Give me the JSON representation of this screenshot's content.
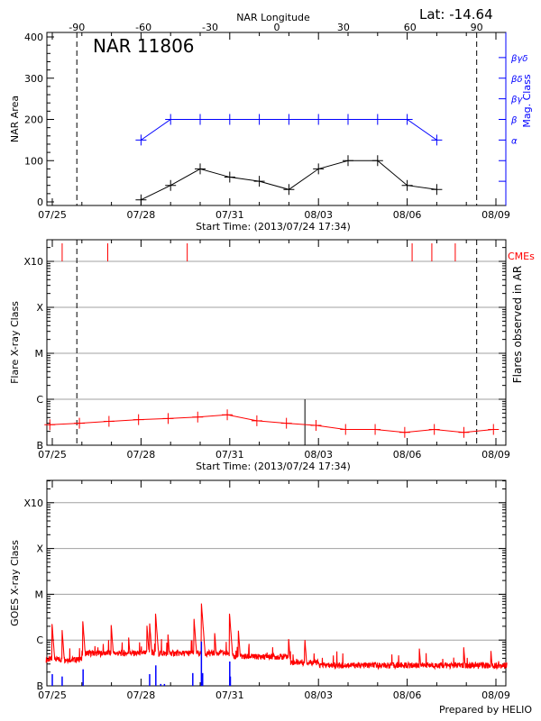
{
  "header": {
    "lat_label": "Lat: -14.64",
    "credit": "Prepared by HELIO"
  },
  "colors": {
    "area": "#000000",
    "mag_class": "#0000ff",
    "flares": "#ff0000",
    "cme": "#ff0000",
    "goes_long": "#ff0000",
    "goes_short": "#0000ff",
    "grid": "#a0a0a0"
  },
  "chart_data": [
    {
      "type": "line",
      "title": "NAR 11806",
      "xlabel": "Start Time: (2013/07/24 17:34)",
      "x_ticks": [
        "07/25",
        "07/28",
        "07/31",
        "08/03",
        "08/06",
        "08/09"
      ],
      "top_axis": {
        "label": "NAR Longitude",
        "ticks": [
          "-90",
          "-60",
          "-30",
          "0",
          "30",
          "60",
          "90"
        ]
      },
      "limb_longitudes": [
        -90,
        90
      ],
      "ylabel": "NAR Area",
      "ylim": [
        0,
        400
      ],
      "y_ticks": [
        "0",
        "100",
        "200",
        "300",
        "400"
      ],
      "y2label": "Mag. Class",
      "y2_ticks": [
        "α",
        "β",
        "βγ",
        "βδ",
        "βγδ"
      ],
      "series": [
        {
          "key": "area",
          "x": [
            "2013-07-28 00:00",
            "2013-07-29 00:00",
            "2013-07-30 00:00",
            "2013-07-31 00:00",
            "2013-08-01 00:00",
            "2013-08-02 00:00",
            "2013-08-03 00:00",
            "2013-08-04 00:00",
            "2013-08-05 00:00",
            "2013-08-06 00:00",
            "2013-08-07 00:00"
          ],
          "values": [
            5,
            40,
            80,
            60,
            50,
            30,
            80,
            100,
            100,
            40,
            30
          ]
        },
        {
          "key": "mag_class",
          "x": [
            "2013-07-28 00:00",
            "2013-07-29 00:00",
            "2013-07-30 00:00",
            "2013-07-31 00:00",
            "2013-08-01 00:00",
            "2013-08-02 00:00",
            "2013-08-03 00:00",
            "2013-08-04 00:00",
            "2013-08-05 00:00",
            "2013-08-06 00:00",
            "2013-08-07 00:00"
          ],
          "values": [
            "α",
            "β",
            "β",
            "β",
            "β",
            "β",
            "β",
            "β",
            "β",
            "β",
            "α"
          ]
        }
      ],
      "grid": false
    },
    {
      "type": "line",
      "xlabel": "Start Time: (2013/07/24 17:34)",
      "x_ticks": [
        "07/25",
        "07/28",
        "07/31",
        "08/03",
        "08/06",
        "08/09"
      ],
      "ylabel": "Flare X-ray Class",
      "y_ticks": [
        "B",
        "C",
        "M",
        "X",
        "X10"
      ],
      "y_scale": "log",
      "y2label": "Flares observed in AR",
      "cme_label": "CMEs",
      "cme_times": [
        "2013-07-25 08:00",
        "2013-07-26 21:00",
        "2013-07-29 13:30",
        "2013-08-06 04:00",
        "2013-08-06 20:00",
        "2013-08-07 15:00"
      ],
      "limb_longitudes": [
        -90,
        90
      ],
      "marker_time": "2013-08-02 13:00",
      "series": [
        {
          "key": "flares",
          "x": [
            "2013-07-24 22:00",
            "2013-07-25 22:00",
            "2013-07-26 22:00",
            "2013-07-27 22:00",
            "2013-07-28 22:00",
            "2013-07-29 22:00",
            "2013-07-30 22:00",
            "2013-07-31 22:00",
            "2013-08-01 22:00",
            "2013-08-02 22:00",
            "2013-08-03 22:00",
            "2013-08-04 22:00",
            "2013-08-05 22:00",
            "2013-08-06 22:00",
            "2013-08-07 22:00",
            "2013-08-08 22:00"
          ],
          "values": [
            "B2.8",
            "B3.0",
            "B3.3",
            "B3.6",
            "B3.8",
            "B4.1",
            "B4.6",
            "B3.4",
            "B3.0",
            "B2.7",
            "B2.2",
            "B2.2",
            "B1.9",
            "B2.2",
            "B1.9",
            "B2.2"
          ]
        }
      ],
      "grid": true
    },
    {
      "type": "line",
      "x_ticks": [
        "07/25",
        "07/28",
        "07/31",
        "08/03",
        "08/06",
        "08/09"
      ],
      "ylabel": "GOES X-ray Class",
      "y_ticks": [
        "B",
        "C",
        "M",
        "X",
        "X10"
      ],
      "y_scale": "log",
      "series": [
        {
          "key": "goes_long",
          "baseline": [
            [
              "2013-07-24 19:00",
              "B3.2"
            ],
            [
              "2013-07-26 00:00",
              "B4.4"
            ],
            [
              "2013-07-31 00:00",
              "B3.7"
            ],
            [
              "2013-08-02 00:00",
              "B2.8"
            ],
            [
              "2013-08-03 00:00",
              "B2.4"
            ],
            [
              "2013-08-09 09:00",
              "B2.2"
            ]
          ],
          "peaks": [
            [
              "2013-07-25 00:00",
              "C1.9"
            ],
            [
              "2013-07-25 08:00",
              "C1.6"
            ],
            [
              "2013-07-26 01:00",
              "C2.1"
            ],
            [
              "2013-07-27 00:00",
              "C1.8"
            ],
            [
              "2013-07-27 14:00",
              "C1.1"
            ],
            [
              "2013-07-28 05:00",
              "C1.8"
            ],
            [
              "2013-07-28 07:00",
              "C2.3"
            ],
            [
              "2013-07-28 12:00",
              "C3.2"
            ],
            [
              "2013-07-28 22:00",
              "C1.2"
            ],
            [
              "2013-07-29 19:00",
              "C2.9"
            ],
            [
              "2013-07-30 01:00",
              "C6.3"
            ],
            [
              "2013-07-30 12:00",
              "C1.2"
            ],
            [
              "2013-07-31 00:00",
              "C3.2"
            ],
            [
              "2013-07-31 07:00",
              "C1.6"
            ],
            [
              "2013-08-02 00:00",
              "B8.9"
            ],
            [
              "2013-08-02 13:00",
              "C1.0"
            ],
            [
              "2013-08-06 10:00",
              "B5.9"
            ],
            [
              "2013-08-07 22:00",
              "B6.3"
            ],
            [
              "2013-08-08 20:00",
              "B5.6"
            ]
          ]
        },
        {
          "key": "goes_short",
          "peaks": [
            [
              "2013-07-25 00:00",
              "B1.8"
            ],
            [
              "2013-07-25 08:00",
              "B1.6"
            ],
            [
              "2013-07-26 01:00",
              "B2.3"
            ],
            [
              "2013-07-28 07:00",
              "B1.8"
            ],
            [
              "2013-07-28 12:00",
              "B2.8"
            ],
            [
              "2013-07-28 16:00",
              "B1.1"
            ],
            [
              "2013-07-28 19:00",
              "B1.1"
            ],
            [
              "2013-07-29 18:00",
              "B1.9"
            ],
            [
              "2013-07-30 01:00",
              "B9.3"
            ],
            [
              "2013-07-30 02:00",
              "B1.9"
            ],
            [
              "2013-07-31 00:00",
              "B3.4"
            ],
            [
              "2013-07-31 00:30",
              "B1.6"
            ]
          ]
        }
      ],
      "grid": true
    }
  ]
}
